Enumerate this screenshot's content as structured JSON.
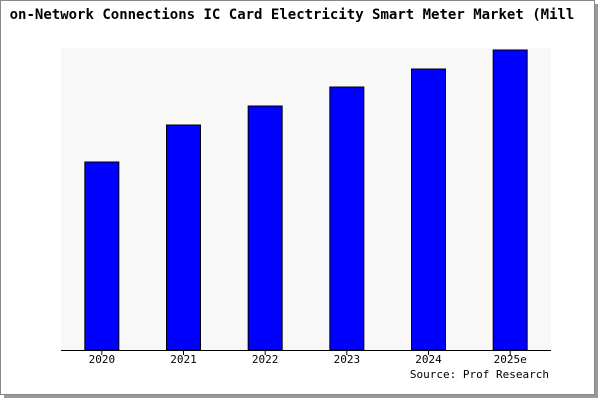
{
  "chart_data": {
    "type": "bar",
    "title": "on-Network Connections IC Card Electricity Smart Meter Market (Mill",
    "categories": [
      "2020",
      "2021",
      "2022",
      "2023",
      "2024",
      "2025e"
    ],
    "values": [
      188,
      225,
      244,
      263,
      281,
      300
    ],
    "color": "#0000ff",
    "source": "Source: Prof Research"
  }
}
